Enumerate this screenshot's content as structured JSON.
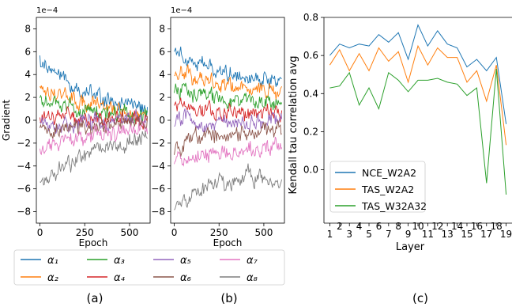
{
  "colors": {
    "alpha": [
      "#1f77b4",
      "#ff7f0e",
      "#2ca02c",
      "#d62728",
      "#9467bd",
      "#8c564b",
      "#e377c2",
      "#7f7f7f"
    ]
  },
  "chart_data": [
    {
      "id": "a",
      "type": "line",
      "caption": "(a)",
      "xlabel": "Epoch",
      "ylabel": "Gradient",
      "scale_note": "1e−4",
      "xlim": [
        -20,
        615
      ],
      "ylim": [
        -9,
        9
      ],
      "xticks": [
        0,
        250,
        500
      ],
      "yticks": [
        -8,
        -6,
        -4,
        -2,
        0,
        2,
        4,
        6,
        8
      ],
      "x_range": [
        0,
        600
      ],
      "series": [
        {
          "name": "α₁",
          "trend": [
            5.3,
            4.0,
            2.8,
            2.2,
            1.7,
            1.3,
            1.0
          ]
        },
        {
          "name": "α₂",
          "trend": [
            2.9,
            2.3,
            1.8,
            1.3,
            1.0,
            0.8,
            0.6
          ]
        },
        {
          "name": "α₃",
          "trend": [
            1.7,
            1.3,
            1.0,
            0.7,
            0.5,
            0.4,
            0.3
          ]
        },
        {
          "name": "α₄",
          "trend": [
            0.3,
            0.3,
            0.2,
            0.2,
            0.1,
            0.1,
            0.1
          ]
        },
        {
          "name": "α₅",
          "trend": [
            -0.3,
            -0.2,
            -0.2,
            -0.1,
            -0.1,
            0.0,
            0.0
          ]
        },
        {
          "name": "α₆",
          "trend": [
            -1.0,
            -0.8,
            -0.6,
            -0.5,
            -0.4,
            -0.3,
            -0.2
          ]
        },
        {
          "name": "α₇",
          "trend": [
            -2.5,
            -2.1,
            -1.7,
            -1.4,
            -1.2,
            -1.0,
            -0.8
          ]
        },
        {
          "name": "α₈",
          "trend": [
            -5.6,
            -4.3,
            -3.4,
            -2.7,
            -2.2,
            -1.8,
            -1.3
          ]
        }
      ]
    },
    {
      "id": "b",
      "type": "line",
      "caption": "(b)",
      "xlabel": "Epoch",
      "ylabel": "",
      "scale_note": "1e−4",
      "xlim": [
        -20,
        615
      ],
      "ylim": [
        -9,
        9
      ],
      "xticks": [
        0,
        250,
        500
      ],
      "yticks": [
        -8,
        -6,
        -4,
        -2,
        0,
        2,
        4,
        6,
        8
      ],
      "x_range": [
        0,
        600
      ],
      "series": [
        {
          "name": "α₁",
          "trend": [
            6.4,
            5.2,
            4.6,
            4.2,
            3.9,
            3.6,
            3.6
          ]
        },
        {
          "name": "α₂",
          "trend": [
            4.6,
            3.9,
            3.4,
            3.0,
            2.7,
            2.5,
            2.4
          ]
        },
        {
          "name": "α₃",
          "trend": [
            2.9,
            2.4,
            2.0,
            1.7,
            1.6,
            1.5,
            1.5
          ]
        },
        {
          "name": "α₄",
          "trend": [
            1.6,
            1.2,
            0.9,
            0.8,
            0.7,
            0.6,
            0.6
          ]
        },
        {
          "name": "α₅",
          "trend": [
            0.1,
            -0.1,
            -0.2,
            -0.1,
            -0.1,
            0.0,
            0.2
          ]
        },
        {
          "name": "α₆",
          "trend": [
            -2.6,
            -1.7,
            -1.3,
            -1.2,
            -1.1,
            -1.1,
            -0.6
          ]
        },
        {
          "name": "α₇",
          "trend": [
            -3.6,
            -3.3,
            -3.0,
            -2.8,
            -2.5,
            -2.3,
            -2.3
          ]
        },
        {
          "name": "α₈",
          "trend": [
            -7.3,
            -6.3,
            -5.7,
            -5.4,
            -4.8,
            -5.0,
            -5.6
          ]
        }
      ]
    },
    {
      "id": "c",
      "type": "line",
      "caption": "(c)",
      "xlabel": "Layer",
      "ylabel": "Kendall tau correlation avg",
      "xlim": [
        0.4,
        19.6
      ],
      "ylim": [
        -0.28,
        0.8
      ],
      "xticks": [
        1,
        3,
        5,
        7,
        9,
        11,
        13,
        15,
        17,
        19
      ],
      "xticks_minor": [
        2,
        4,
        6,
        8,
        10,
        12,
        14,
        16,
        18
      ],
      "yticks": [
        0.0,
        0.2,
        0.4,
        0.6,
        0.8
      ],
      "ytick_labels": [
        "0.0",
        "0.2",
        "0.4",
        "0.6",
        "0.8"
      ],
      "legend_position": "lower-left",
      "x": [
        1,
        2,
        3,
        4,
        5,
        6,
        7,
        8,
        9,
        10,
        11,
        12,
        13,
        14,
        15,
        16,
        17,
        18,
        19
      ],
      "series": [
        {
          "name": "NCE_W2A2",
          "values": [
            0.6,
            0.66,
            0.64,
            0.66,
            0.65,
            0.71,
            0.67,
            0.72,
            0.58,
            0.76,
            0.65,
            0.73,
            0.66,
            0.64,
            0.54,
            0.58,
            0.52,
            0.59,
            0.24
          ]
        },
        {
          "name": "TAS_W2A2",
          "values": [
            0.55,
            0.63,
            0.52,
            0.61,
            0.52,
            0.64,
            0.57,
            0.62,
            0.46,
            0.65,
            0.55,
            0.64,
            0.59,
            0.59,
            0.46,
            0.52,
            0.36,
            0.55,
            0.13
          ]
        },
        {
          "name": "TAS_W32A32",
          "values": [
            0.43,
            0.44,
            0.51,
            0.34,
            0.43,
            0.32,
            0.51,
            0.47,
            0.41,
            0.47,
            0.47,
            0.48,
            0.46,
            0.45,
            0.39,
            0.43,
            -0.07,
            0.53,
            -0.13
          ]
        }
      ]
    }
  ]
}
